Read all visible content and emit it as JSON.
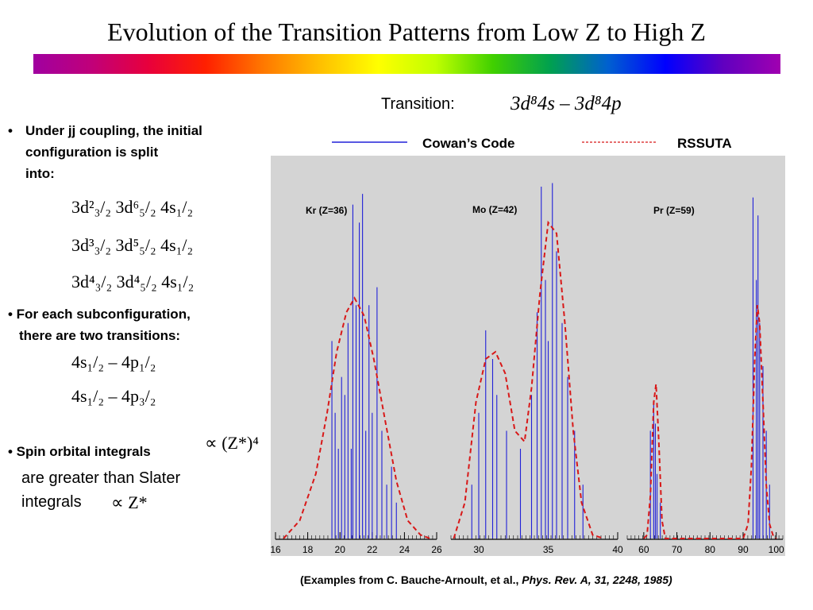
{
  "title": "Evolution of the Transition Patterns from Low Z to High Z",
  "colors": {
    "panel_bg": "#d4d4d4",
    "cowan_line": "#2020d8",
    "rssuta_line": "#d81818",
    "rainbow": [
      "#a000a0",
      "#c0007a",
      "#e8003c",
      "#ff2000",
      "#ff7800",
      "#ffc000",
      "#ffff00",
      "#c0ff00",
      "#40d000",
      "#00a050",
      "#0060d0",
      "#0000ff",
      "#6000c0",
      "#a000b0"
    ]
  },
  "transition": {
    "label": "Transition:",
    "formula": "3d⁸4s – 3d⁸4p"
  },
  "left": {
    "bullet1_marker": "•",
    "bullet1_line1": "Under jj coupling, the initial",
    "bullet1_line2": "configuration is split",
    "bullet1_line3": "into:",
    "configs": [
      "3d²₃/₂ 3d⁶₅/₂ 4s₁/₂",
      "3d³₃/₂ 3d⁵₅/₂ 4s₁/₂",
      "3d⁴₃/₂ 3d⁴₅/₂ 4s₁/₂"
    ],
    "bullet2_line1": "• For each subconfiguration,",
    "bullet2_line2": "there are two transitions:",
    "transitions": [
      "4s₁/₂ – 4p₁/₂",
      "4s₁/₂ – 4p₃/₂"
    ],
    "bullet3_label": "• Spin orbital integrals",
    "bullet3_math": "∝ (Z*)⁴",
    "bullet3_line2": "are greater than Slater",
    "bullet3_line3": "integrals",
    "bullet3_math2": "∝ Z*"
  },
  "legend": {
    "cowan": "Cowan’s Code",
    "rssuta": "RSSUTA"
  },
  "citation_plain": "(Examples from C. Bauche-Arnoult, et al., ",
  "citation_italic": "Phys. Rev. A, 31, 2248, 1985)",
  "chart_data": [
    {
      "type": "line",
      "label": "Kr (Z=36)",
      "xlim": [
        16,
        26
      ],
      "ticks": [
        "16",
        "18",
        "20",
        "22",
        "24",
        "26"
      ],
      "series": [
        {
          "name": "Cowan’s Code",
          "style": "lines",
          "x": [
            19.5,
            19.7,
            19.9,
            20.1,
            20.3,
            20.5,
            20.7,
            20.8,
            21.0,
            21.2,
            21.4,
            21.6,
            21.8,
            22.0,
            22.3,
            22.6,
            22.9,
            23.2,
            23.5
          ],
          "y": [
            0.55,
            0.35,
            0.25,
            0.45,
            0.4,
            0.6,
            0.25,
            0.93,
            0.65,
            0.88,
            0.96,
            0.3,
            0.65,
            0.35,
            0.7,
            0.3,
            0.15,
            0.2,
            0.1
          ]
        },
        {
          "name": "RSSUTA",
          "style": "dashed",
          "x": [
            16.5,
            17.5,
            18.5,
            19.2,
            19.8,
            20.4,
            20.9,
            21.5,
            22.1,
            22.8,
            23.5,
            24.2,
            25.0,
            25.6
          ],
          "y": [
            0.0,
            0.05,
            0.18,
            0.35,
            0.52,
            0.63,
            0.67,
            0.62,
            0.5,
            0.33,
            0.16,
            0.05,
            0.01,
            0.0
          ]
        }
      ]
    },
    {
      "type": "line",
      "label": "Mo (Z=42)",
      "xlim": [
        28,
        40
      ],
      "ticks": [
        "30",
        "35",
        "40"
      ],
      "series": [
        {
          "name": "Cowan’s Code",
          "style": "lines",
          "x": [
            29.5,
            30.0,
            30.5,
            31.0,
            31.3,
            32.0,
            33.0,
            33.8,
            34.2,
            34.5,
            34.8,
            35.0,
            35.3,
            35.6,
            36.0,
            36.4,
            36.9,
            37.5
          ],
          "y": [
            0.15,
            0.35,
            0.58,
            0.5,
            0.4,
            0.3,
            0.25,
            0.4,
            0.63,
            0.98,
            0.72,
            0.55,
            0.99,
            0.8,
            0.6,
            0.45,
            0.3,
            0.15
          ]
        },
        {
          "name": "RSSUTA",
          "style": "dashed",
          "x": [
            28.2,
            29.0,
            29.8,
            30.5,
            31.2,
            31.9,
            32.6,
            33.3,
            33.8,
            34.4,
            35.0,
            35.6,
            36.2,
            36.8,
            37.4,
            38.2,
            39.0
          ],
          "y": [
            0.0,
            0.1,
            0.38,
            0.5,
            0.52,
            0.46,
            0.3,
            0.27,
            0.42,
            0.68,
            0.88,
            0.85,
            0.6,
            0.3,
            0.1,
            0.01,
            0.0
          ]
        }
      ]
    },
    {
      "type": "line",
      "label": "Pr (Z=59)",
      "xlim": [
        55,
        102
      ],
      "ticks": [
        "60",
        "70",
        "80",
        "90",
        "100"
      ],
      "series": [
        {
          "name": "Cowan’s Code",
          "style": "lines",
          "x": [
            62,
            63,
            63.5,
            64,
            65,
            93,
            94,
            94.5,
            95,
            96,
            97,
            98
          ],
          "y": [
            0.3,
            0.38,
            0.32,
            0.18,
            0.1,
            0.95,
            0.72,
            0.9,
            0.6,
            0.48,
            0.3,
            0.15
          ]
        },
        {
          "name": "RSSUTA",
          "style": "dashed",
          "x": [
            60,
            61,
            62,
            63,
            63.7,
            64.5,
            65.5,
            66.5,
            90,
            91.5,
            92.5,
            93.5,
            94.3,
            95,
            96,
            97,
            98,
            99,
            100
          ],
          "y": [
            0.0,
            0.01,
            0.12,
            0.38,
            0.43,
            0.28,
            0.05,
            0.0,
            0.0,
            0.04,
            0.2,
            0.5,
            0.65,
            0.6,
            0.38,
            0.15,
            0.04,
            0.01,
            0.0
          ]
        }
      ]
    }
  ]
}
